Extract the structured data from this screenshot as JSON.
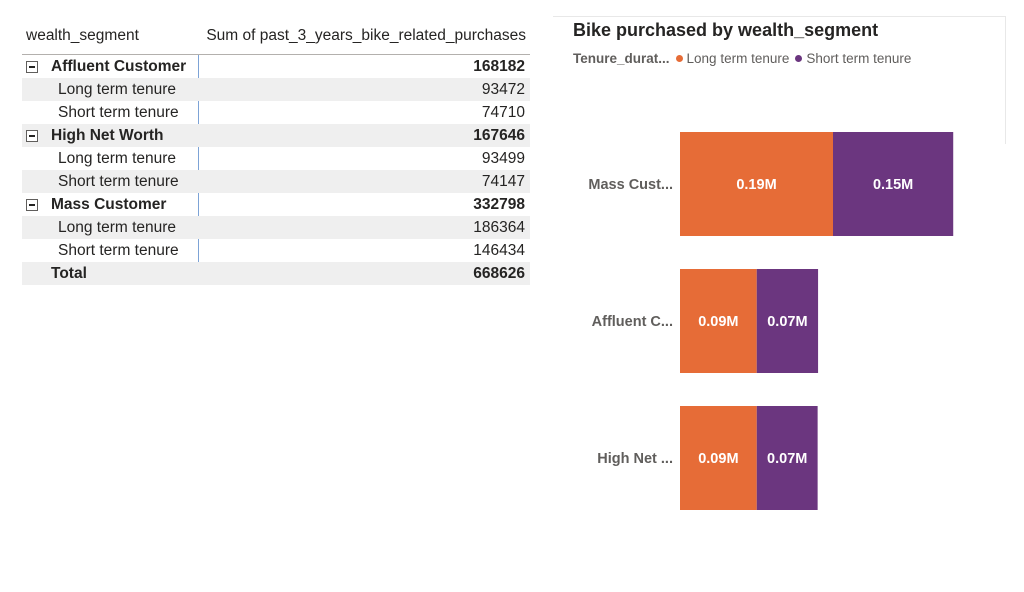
{
  "matrix": {
    "col1_header": "wealth_segment",
    "col2_header": "Sum of past_3_years_bike_related_purchases",
    "rows": [
      {
        "kind": "group",
        "label": "Affluent Customer",
        "value": "168182"
      },
      {
        "kind": "child",
        "label": "Long term tenure",
        "value": "93472"
      },
      {
        "kind": "child",
        "label": "Short term tenure",
        "value": "74710"
      },
      {
        "kind": "group",
        "label": "High Net Worth",
        "value": "167646"
      },
      {
        "kind": "child",
        "label": "Long term tenure",
        "value": "93499"
      },
      {
        "kind": "child",
        "label": "Short term tenure",
        "value": "74147"
      },
      {
        "kind": "group",
        "label": "Mass Customer",
        "value": "332798"
      },
      {
        "kind": "child",
        "label": "Long term tenure",
        "value": "186364"
      },
      {
        "kind": "child",
        "label": "Short term tenure",
        "value": "146434"
      },
      {
        "kind": "total",
        "label": "Total",
        "value": "668626"
      }
    ]
  },
  "chart_data": {
    "type": "bar",
    "orientation": "horizontal",
    "stacked": true,
    "title": "Bike purchased by wealth_segment",
    "legend_title": "Tenure_durat...",
    "legend_position": "top-left",
    "categories": [
      "Mass Cust...",
      "Affluent C...",
      "High Net ..."
    ],
    "series": [
      {
        "name": "Long term tenure",
        "color": "#e66c37",
        "values": [
          186364,
          93472,
          93499
        ],
        "labels": [
          "0.19M",
          "0.09M",
          "0.09M"
        ]
      },
      {
        "name": "Short term tenure",
        "color": "#6b367f",
        "values": [
          146434,
          74710,
          74147
        ],
        "labels": [
          "0.15M",
          "0.07M",
          "0.07M"
        ]
      }
    ],
    "xlim": [
      0,
      400000
    ],
    "grid": false
  }
}
